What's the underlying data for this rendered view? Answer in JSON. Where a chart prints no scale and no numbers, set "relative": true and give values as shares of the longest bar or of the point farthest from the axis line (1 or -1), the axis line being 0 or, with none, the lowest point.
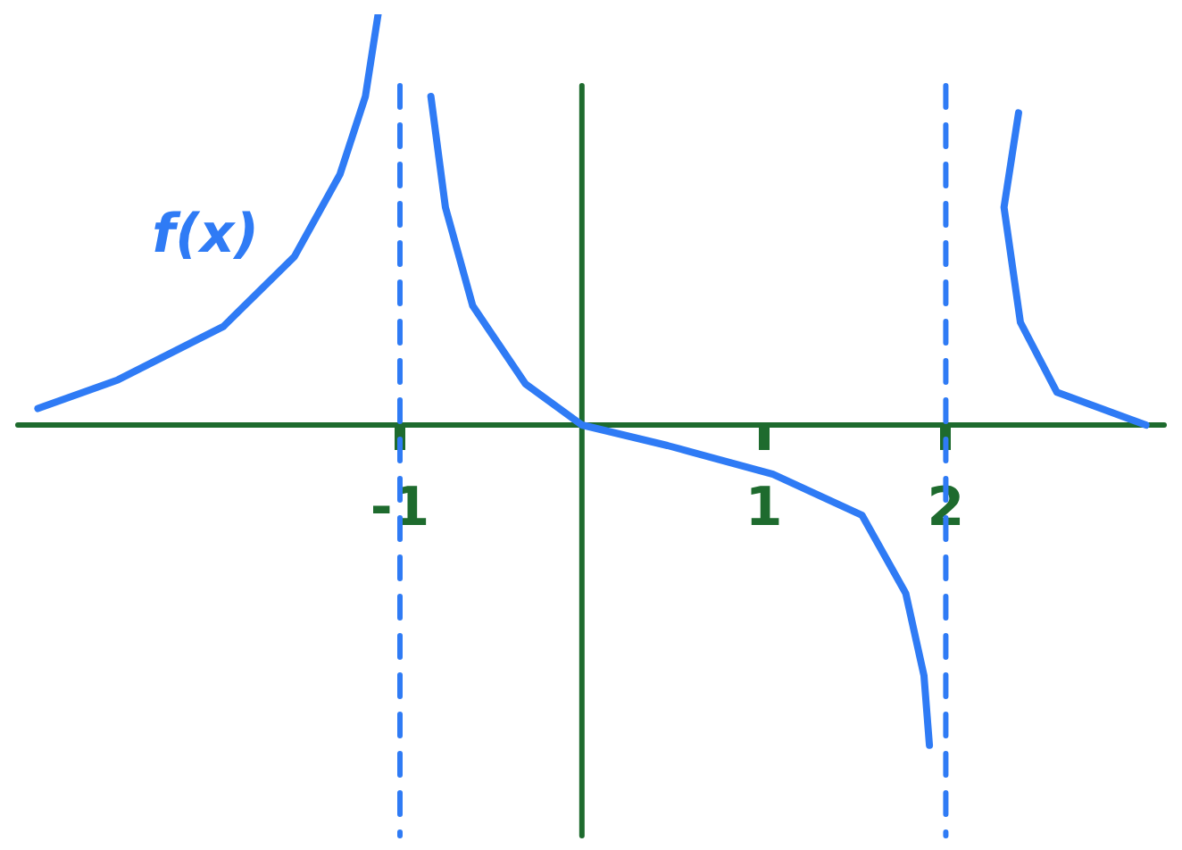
{
  "chart_data": {
    "type": "line",
    "relative": true,
    "xlim": [
      -3.1,
      3.2
    ],
    "xticks": [
      -1,
      1,
      2
    ],
    "grid": false,
    "legend": false,
    "marker": "none",
    "line_style": "solid",
    "series": [
      {
        "color": "#2f7bf5",
        "x": [
          -2.99,
          -2.55,
          -1.97,
          -1.58,
          -1.33,
          -1.19,
          -1.12
        ],
        "values": [
          0.04,
          0.11,
          0.24,
          0.41,
          0.61,
          0.8,
          1
        ]
      },
      {
        "color": "#2f7bf5",
        "x": [
          -0.83,
          -0.75,
          -0.6,
          -0.31,
          0,
          0.47,
          1.05,
          1.54,
          1.78,
          1.88,
          1.91
        ],
        "values": [
          0.8,
          0.53,
          0.29,
          0.1,
          0,
          -0.05,
          -0.12,
          -0.22,
          -0.41,
          -0.61,
          -0.78
        ]
      },
      {
        "color": "#2f7bf5",
        "x": [
          2.4,
          2.32,
          2.41,
          2.61,
          3.1
        ],
        "values": [
          0.76,
          0.53,
          0.25,
          0.08,
          0
        ]
      }
    ],
    "ref_lines": [
      {
        "axis": "x",
        "value": 0,
        "color": "#1e6b2e",
        "line_style": "solid"
      },
      {
        "axis": "x",
        "value": -1,
        "color": "#2f7bf5",
        "line_style": "dashed"
      },
      {
        "axis": "x",
        "value": 2,
        "color": "#2f7bf5",
        "line_style": "dashed"
      }
    ],
    "annotations": [
      "f(x)"
    ]
  }
}
